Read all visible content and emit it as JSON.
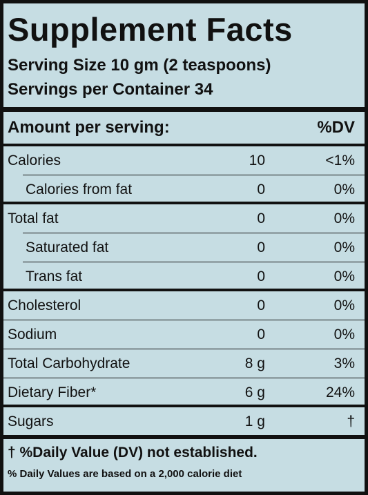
{
  "title": "Supplement Facts",
  "serving_size": "Serving Size 10 gm (2 teaspoons)",
  "servings_per_container": "Servings per Container 34",
  "header": {
    "amount": "Amount per serving:",
    "dv": "%DV"
  },
  "rows": [
    {
      "name": "Calories",
      "amount": "10",
      "dv": "<1%"
    },
    {
      "name": "Calories from fat",
      "amount": "0",
      "dv": "0%"
    },
    {
      "name": "Total fat",
      "amount": "0",
      "dv": "0%"
    },
    {
      "name": "Saturated fat",
      "amount": "0",
      "dv": "0%"
    },
    {
      "name": "Trans fat",
      "amount": "0",
      "dv": "0%"
    },
    {
      "name": "Cholesterol",
      "amount": "0",
      "dv": "0%"
    },
    {
      "name": "Sodium",
      "amount": "0",
      "dv": "0%"
    },
    {
      "name": "Total Carbohydrate",
      "amount": "8 g",
      "dv": "3%"
    },
    {
      "name": "Dietary Fiber*",
      "amount": "6 g",
      "dv": "24%"
    },
    {
      "name": "Sugars",
      "amount": "1 g",
      "dv": "†"
    }
  ],
  "footnotes": [
    "† %Daily Value (DV) not established.",
    "% Daily Values are based on a 2,000 calorie diet"
  ]
}
